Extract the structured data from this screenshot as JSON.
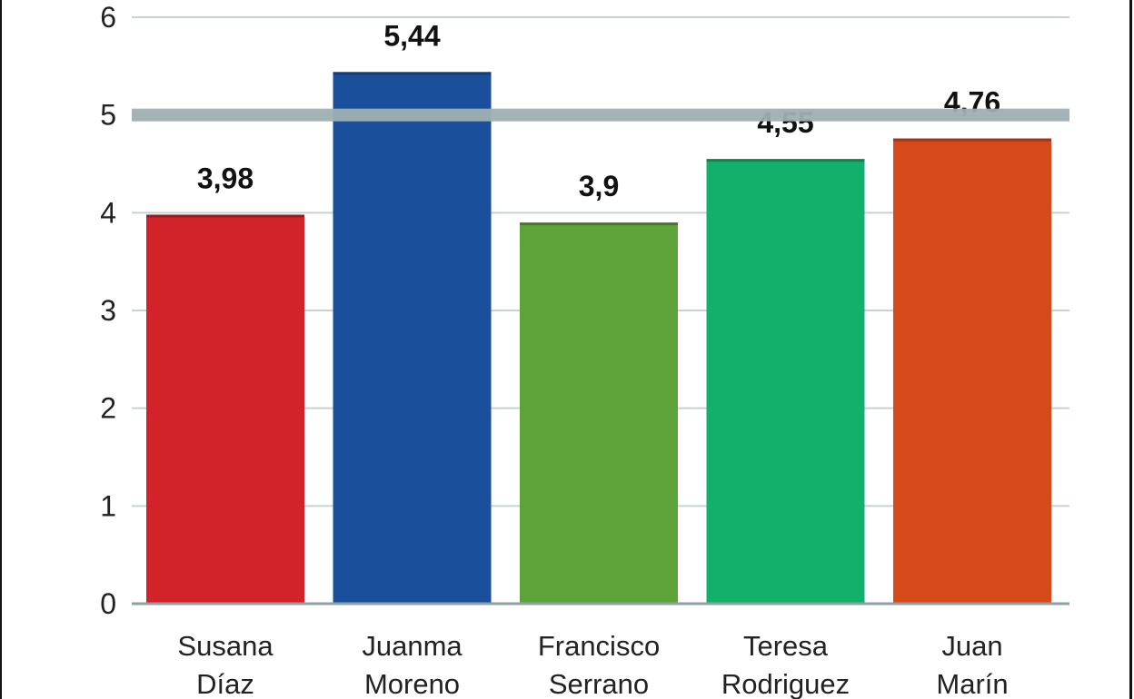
{
  "chart_data": {
    "type": "bar",
    "categories": [
      [
        "Susana",
        "Díaz"
      ],
      [
        "Juanma",
        "Moreno"
      ],
      [
        "Francisco",
        "Serrano"
      ],
      [
        "Teresa",
        "Rodriguez"
      ],
      [
        "Juan",
        "Marín"
      ]
    ],
    "values": [
      3.98,
      5.44,
      3.9,
      4.55,
      4.76
    ],
    "value_labels": [
      "3,98",
      "5,44",
      "3,9",
      "4,55",
      "4,76"
    ],
    "bar_colors": [
      "#d2222a",
      "#1a4f9c",
      "#5ea33a",
      "#12b06a",
      "#d6491b"
    ],
    "yticks": [
      "0",
      "1",
      "2",
      "3",
      "4",
      "5",
      "6"
    ],
    "ylim": [
      0,
      6
    ],
    "reference_line": 5,
    "grid": true,
    "title": "",
    "xlabel": "",
    "ylabel": ""
  }
}
